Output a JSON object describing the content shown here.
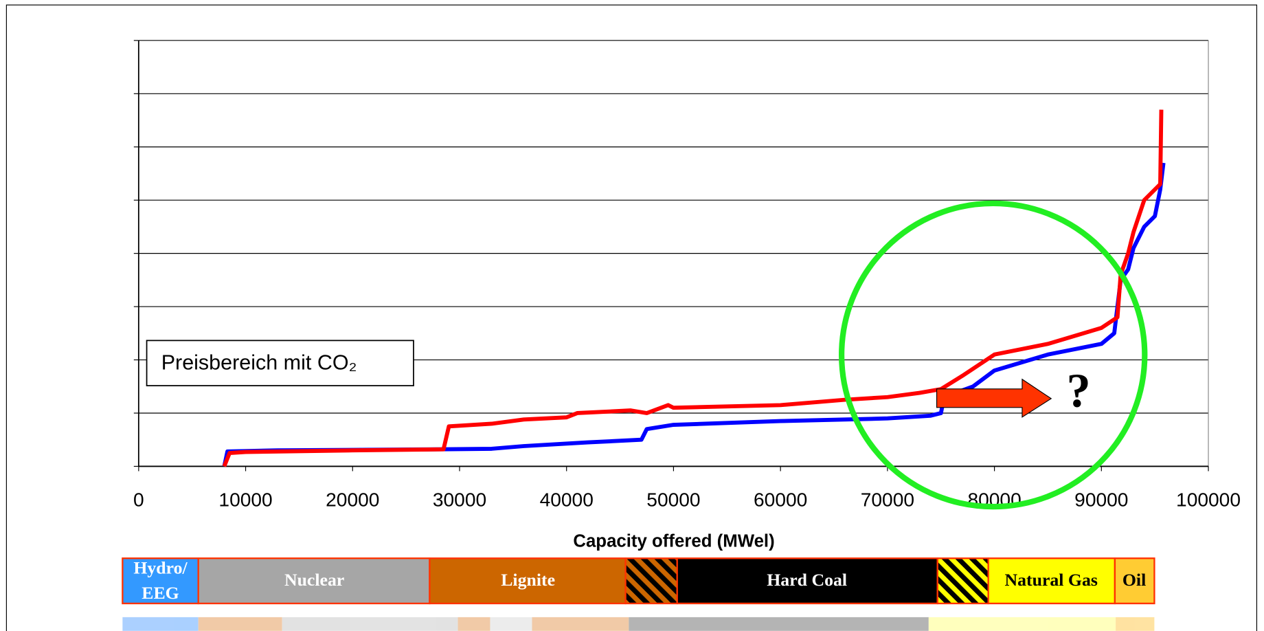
{
  "chart_data": {
    "type": "line",
    "xlabel": "Capacity offered (MWel)",
    "xlim": [
      0,
      100000
    ],
    "xticks": [
      0,
      10000,
      20000,
      30000,
      40000,
      50000,
      60000,
      70000,
      80000,
      90000,
      100000
    ],
    "ylim": [
      0,
      8
    ],
    "yticks": [
      0,
      1,
      2,
      3,
      4,
      5,
      6,
      7,
      8
    ],
    "grid": true,
    "series": [
      {
        "color": "#0000ff",
        "x": [
          8000,
          8300,
          13000,
          28000,
          33000,
          36000,
          42000,
          47000,
          47500,
          50000,
          60000,
          70000,
          74000,
          75000,
          75300,
          78000,
          80000,
          85000,
          90000,
          91200,
          91800,
          92500,
          93000,
          94000,
          95000,
          95500,
          95800
        ],
        "values": [
          0,
          0.28,
          0.3,
          0.32,
          0.33,
          0.38,
          0.45,
          0.5,
          0.7,
          0.78,
          0.85,
          0.9,
          0.95,
          1.0,
          1.3,
          1.5,
          1.8,
          2.1,
          2.3,
          2.5,
          3.5,
          3.7,
          4.1,
          4.5,
          4.7,
          5.2,
          5.7
        ]
      },
      {
        "color": "#ff0000",
        "x": [
          8000,
          8500,
          10000,
          20000,
          28500,
          29000,
          33000,
          36000,
          40000,
          41000,
          46000,
          47500,
          49500,
          50000,
          60000,
          66000,
          70000,
          73000,
          75000,
          77000,
          78500,
          80000,
          85000,
          90000,
          91500,
          91800,
          92500,
          93000,
          94000,
          95500,
          95600
        ],
        "values": [
          0,
          0.25,
          0.27,
          0.3,
          0.32,
          0.75,
          0.8,
          0.88,
          0.92,
          1.0,
          1.05,
          1.0,
          1.15,
          1.1,
          1.15,
          1.25,
          1.3,
          1.38,
          1.45,
          1.7,
          1.9,
          2.1,
          2.3,
          2.6,
          2.8,
          3.6,
          4.0,
          4.4,
          5.0,
          5.3,
          6.7
        ]
      }
    ],
    "annotations": [
      "Preisbereich mit CO₂",
      "?"
    ],
    "fuel_bar": [
      "Hydro/",
      "EEG",
      "Nuclear",
      "Lignite",
      "Hard Coal",
      "Natural Gas",
      "Oil"
    ]
  }
}
